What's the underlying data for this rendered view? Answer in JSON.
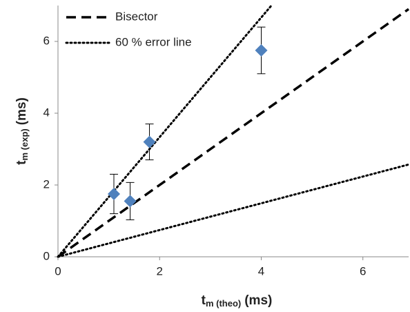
{
  "chart_data": {
    "type": "scatter",
    "xlim": [
      0,
      6.9
    ],
    "ylim": [
      0,
      7
    ],
    "xticks": [
      0,
      2,
      4,
      6
    ],
    "yticks": [
      0,
      2,
      4,
      6
    ],
    "x_label": {
      "main": "t",
      "sub": "m (theo)",
      "unit": "(ms)"
    },
    "y_label": {
      "main": "t",
      "sub": "m (exp)",
      "unit": "(ms)"
    },
    "grid": false,
    "legend": "upper left",
    "series": [
      {
        "name": "Bisector",
        "type": "line",
        "style": "dashed",
        "color": "#000000",
        "x": [
          0,
          6.9
        ],
        "values": [
          0,
          6.9
        ]
      },
      {
        "name": "60 % error line",
        "type": "line",
        "style": "dotted",
        "color": "#000000",
        "x": [
          0,
          4.2,
          null,
          0,
          6.9
        ],
        "values": [
          0,
          7,
          null,
          0,
          2.57
        ]
      },
      {
        "type": "scatter",
        "marker": "diamond",
        "color": "#4f81bd",
        "x": [
          1.1,
          1.42,
          1.8,
          4.0
        ],
        "values": [
          1.75,
          1.55,
          3.2,
          5.75
        ],
        "errors": [
          0.55,
          0.52,
          0.5,
          0.65
        ]
      }
    ]
  }
}
